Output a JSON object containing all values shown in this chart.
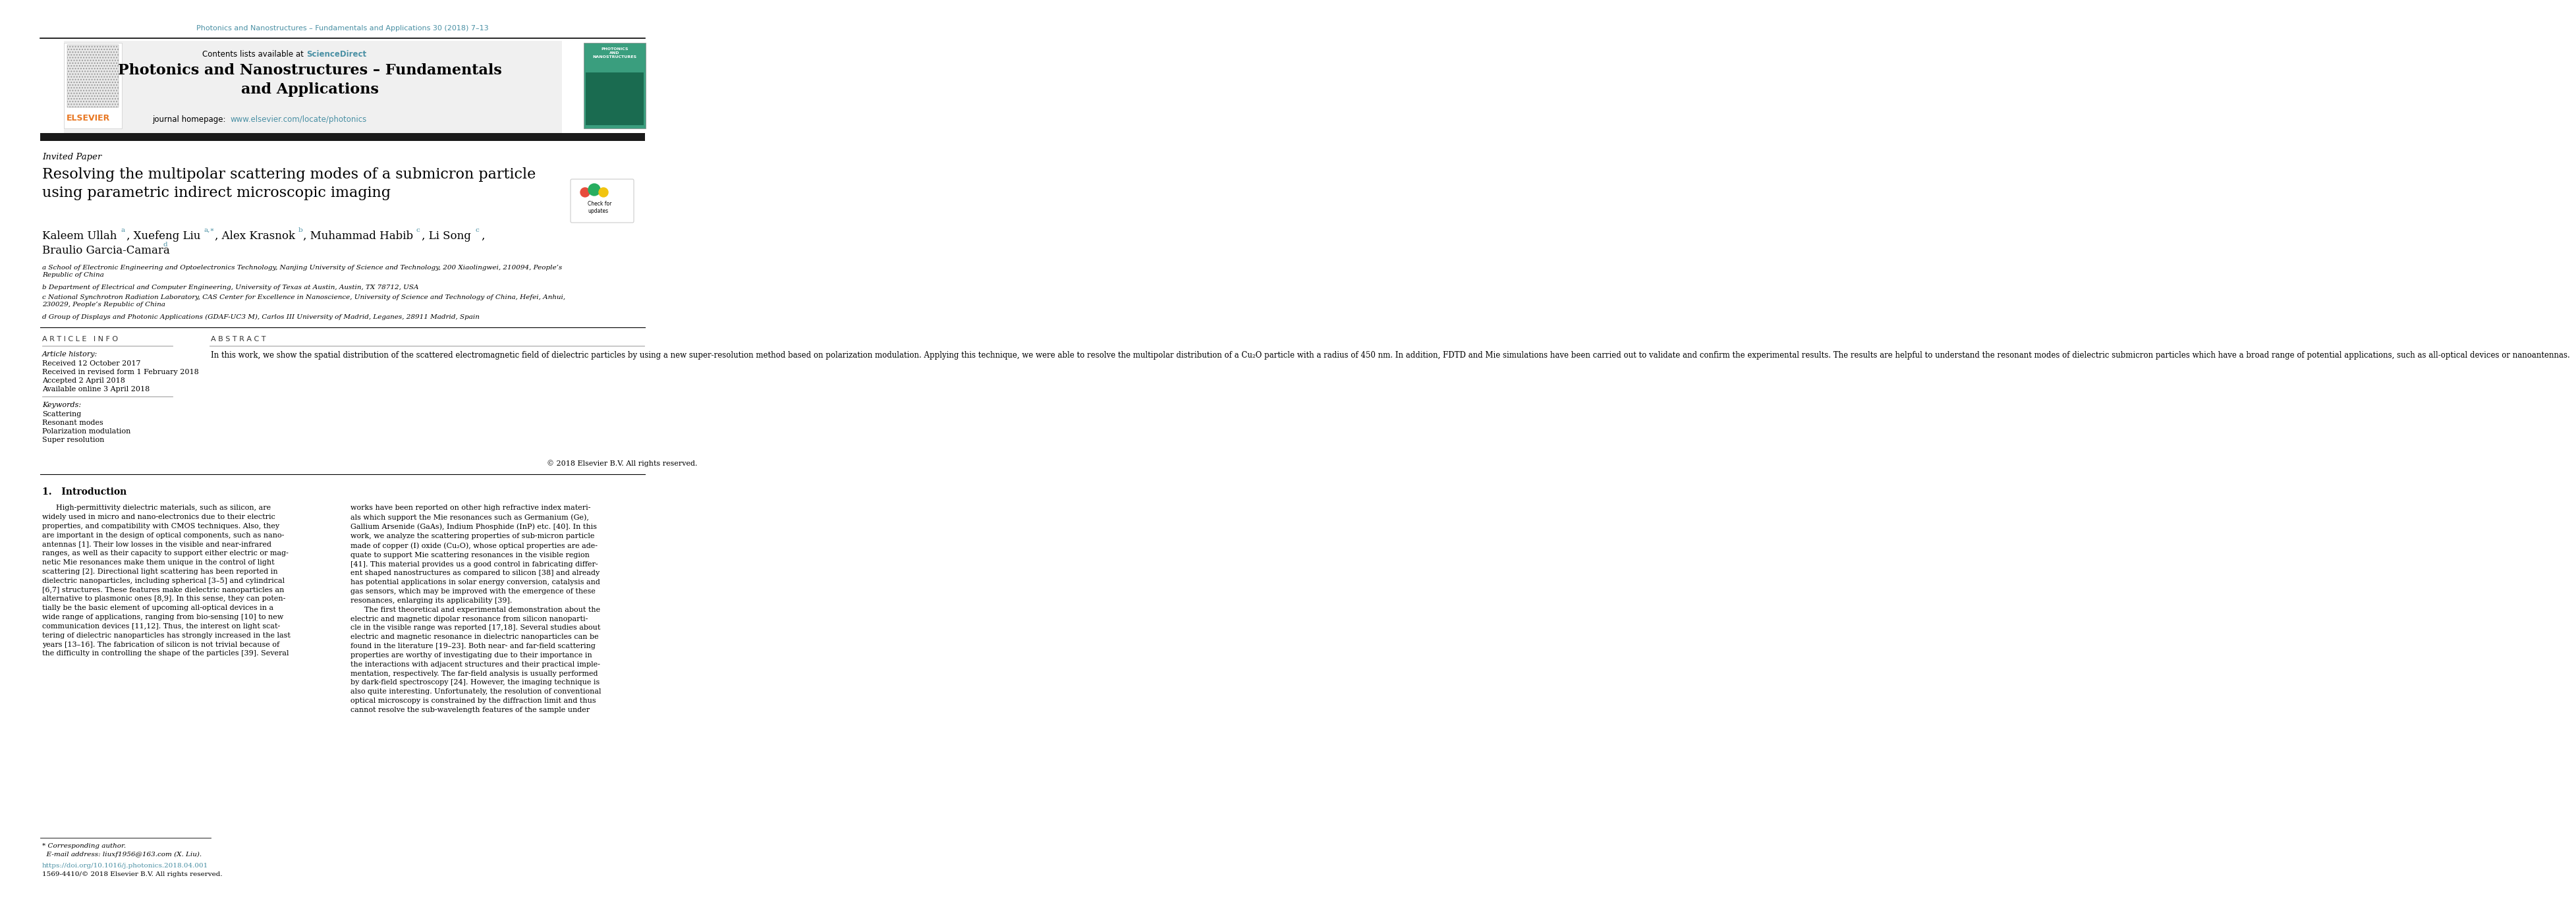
{
  "page_width": 10.2,
  "page_height": 13.51,
  "bg_color": "#ffffff",
  "top_journal_line": "Photonics and Nanostructures – Fundamentals and Applications 30 (2018) 7–13",
  "top_journal_color": "#4A90A4",
  "journal_header_bg": "#f0f0f0",
  "journal_title": "Photonics and Nanostructures – Fundamentals\nand Applications",
  "contents_line": "Contents lists available at ScienceDirect",
  "journal_homepage": "journal homepage:  www.elsevier.com/locate/photonics",
  "elsevier_color": "#E87722",
  "link_color": "#4A90A4",
  "black_bar_color": "#1a1a1a",
  "invited_paper": "Invited Paper",
  "paper_title": "Resolving the multipolar scattering modes of a submicron particle\nusing parametric indirect microscopic imaging",
  "affil_a": "a School of Electronic Engineering and Optoelectronics Technology, Nanjing University of Science and Technology, 200 Xiaolingwei, 210094, People’s\nRepublic of China",
  "affil_b": "b Department of Electrical and Computer Engineering, University of Texas at Austin, Austin, TX 78712, USA",
  "affil_c": "c National Synchrotron Radiation Laboratory, CAS Center for Excellence in Nanoscience, University of Science and Technology of China, Hefei, Anhui,\n230029, People’s Republic of China",
  "affil_d": "d Group of Displays and Photonic Applications (GDAF-UC3 M), Carlos III University of Madrid, Leganes, 28911 Madrid, Spain",
  "article_info_header": "A R T I C L E   I N F O",
  "abstract_header": "A B S T R A C T",
  "article_history_label": "Article history:",
  "received": "Received 12 October 2017",
  "revised": "Received in revised form 1 February 2018",
  "accepted": "Accepted 2 April 2018",
  "available": "Available online 3 April 2018",
  "keywords_label": "Keywords:",
  "keywords": [
    "Scattering",
    "Resonant modes",
    "Polarization modulation",
    "Super resolution"
  ],
  "abstract_text": "In this work, we show the spatial distribution of the scattered electromagnetic field of dielectric particles by using a new super-resolution method based on polarization modulation. Applying this technique, we were able to resolve the multipolar distribution of a Cu₂O particle with a radius of 450 nm. In addition, FDTD and Mie simulations have been carried out to validate and confirm the experimental results. The results are helpful to understand the resonant modes of dielectric submicron particles which have a broad range of potential applications, such as all-optical devices or nanoantennas.",
  "copyright": "© 2018 Elsevier B.V. All rights reserved.",
  "intro_header": "1.   Introduction",
  "intro_col1": "      High-permittivity dielectric materials, such as silicon, are\nwidely used in micro and nano-electronics due to their electric\nproperties, and compatibility with CMOS techniques. Also, they\nare important in the design of optical components, such as nano-\nantennas [1]. Their low losses in the visible and near-infrared\nranges, as well as their capacity to support either electric or mag-\nnetic Mie resonances make them unique in the control of light\nscattering [2]. Directional light scattering has been reported in\ndielectric nanoparticles, including spherical [3–5] and cylindrical\n[6,7] structures. These features make dielectric nanoparticles an\nalternative to plasmonic ones [8,9]. In this sense, they can poten-\ntially be the basic element of upcoming all-optical devices in a\nwide range of applications, ranging from bio-sensing [10] to new\ncommunication devices [11,12]. Thus, the interest on light scat-\ntering of dielectric nanoparticles has strongly increased in the last\nyears [13–16]. The fabrication of silicon is not trivial because of\nthe difficulty in controlling the shape of the particles [39]. Several",
  "intro_col2": "works have been reported on other high refractive index materi-\nals which support the Mie resonances such as Germanium (Ge),\nGallium Arsenide (GaAs), Indium Phosphide (InP) etc. [40]. In this\nwork, we analyze the scattering properties of sub-micron particle\nmade of copper (I) oxide (Cu₂O), whose optical properties are ade-\nquate to support Mie scattering resonances in the visible region\n[41]. This material provides us a good control in fabricating differ-\nent shaped nanostructures as compared to silicon [38] and already\nhas potential applications in solar energy conversion, catalysis and\ngas sensors, which may be improved with the emergence of these\nresonances, enlarging its applicability [39].\n      The first theoretical and experimental demonstration about the\nelectric and magnetic dipolar resonance from silicon nanoparti-\ncle in the visible range was reported [17,18]. Several studies about\nelectric and magnetic resonance in dielectric nanoparticles can be\nfound in the literature [19–23]. Both near- and far-field scattering\nproperties are worthy of investigating due to their importance in\nthe interactions with adjacent structures and their practical imple-\nmentation, respectively. The far-field analysis is usually performed\nby dark-field spectroscopy [24]. However, the imaging technique is\nalso quite interesting. Unfortunately, the resolution of conventional\noptical microscopy is constrained by the diffraction limit and thus\ncannot resolve the sub-wavelength features of the sample under",
  "footer_line1": "* Corresponding author.",
  "footer_line2": "  E-mail address: liuxf1956@163.com (X. Liu).",
  "footer_line3": "https://doi.org/10.1016/j.photonics.2018.04.001",
  "footer_line4": "1569-4410/© 2018 Elsevier B.V. All rights reserved."
}
